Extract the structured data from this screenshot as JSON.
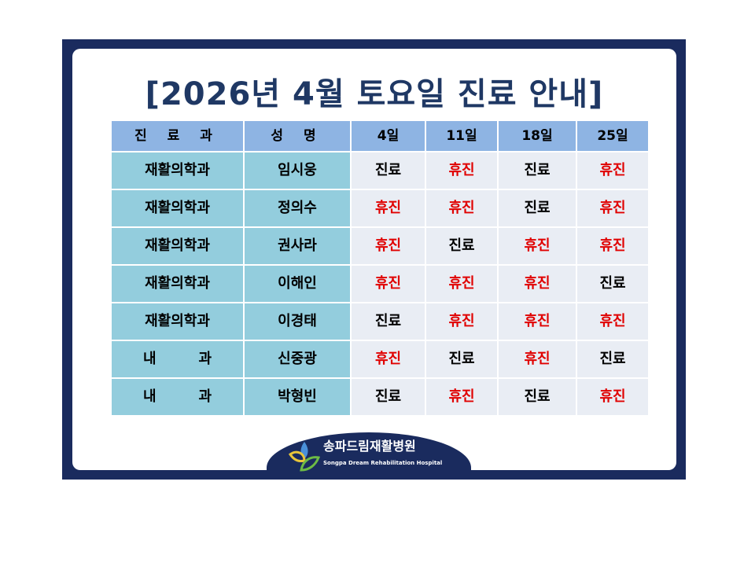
{
  "title": "[2026년 4월 토요일 진료 안내]",
  "headers": [
    "진 료 과",
    "성 명",
    "4일",
    "11일",
    "18일",
    "25일"
  ],
  "rows": [
    {
      "dept": "재활의학과",
      "name": "임시웅",
      "days": [
        "진료",
        "휴진",
        "진료",
        "휴진"
      ]
    },
    {
      "dept": "재활의학과",
      "name": "정의수",
      "days": [
        "휴진",
        "휴진",
        "진료",
        "휴진"
      ]
    },
    {
      "dept": "재활의학과",
      "name": "권사라",
      "days": [
        "휴진",
        "진료",
        "휴진",
        "휴진"
      ]
    },
    {
      "dept": "재활의학과",
      "name": "이해인",
      "days": [
        "휴진",
        "휴진",
        "휴진",
        "진료"
      ]
    },
    {
      "dept": "재활의학과",
      "name": "이경태",
      "days": [
        "진료",
        "휴진",
        "휴진",
        "휴진"
      ]
    },
    {
      "dept": "내　　　과",
      "name": "신중광",
      "days": [
        "휴진",
        "진료",
        "휴진",
        "진료"
      ]
    },
    {
      "dept": "내　　　과",
      "name": "박형빈",
      "days": [
        "진료",
        "휴진",
        "진료",
        "휴진"
      ]
    }
  ],
  "logo": {
    "kr": "송파드림재활병원",
    "en": "Songpa Dream Rehabilitation Hospital"
  },
  "colors": {
    "frame": "#1a2b5e",
    "header": "#8eb4e3",
    "closed": "#e00000"
  }
}
